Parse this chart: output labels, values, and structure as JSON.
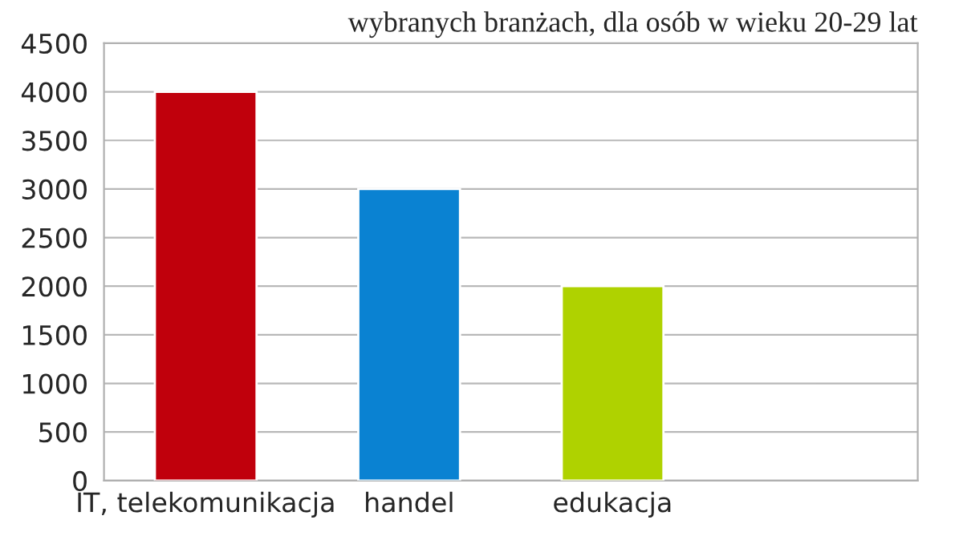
{
  "chart_data": {
    "type": "bar",
    "title": "wybranych branżach, dla osób w wieku 20-29 lat",
    "categories": [
      "IT, telekomunikacja",
      "handel",
      "edukacja",
      null
    ],
    "values": [
      4000,
      3000,
      2000,
      null
    ],
    "colors": [
      "#c0000c",
      "#0a82d2",
      "#afd200",
      "#ffffff"
    ],
    "ylim": [
      0,
      4500
    ],
    "yticks": [
      0,
      500,
      1000,
      1500,
      2000,
      2500,
      3000,
      3500,
      4000,
      4500
    ],
    "grid": "y",
    "legend": false
  }
}
